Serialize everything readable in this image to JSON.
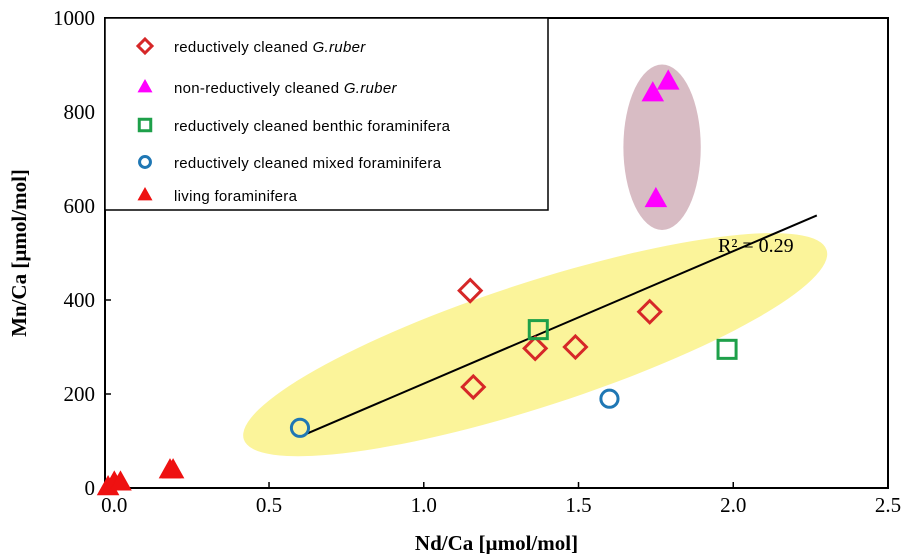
{
  "chart_data": {
    "type": "scatter",
    "xlabel": "Nd/Ca [µmol/mol]",
    "ylabel": "Mn/Ca [µmol/mol]",
    "xlim": [
      -0.03,
      2.5
    ],
    "ylim": [
      0,
      1000
    ],
    "xticks": [
      "0.0",
      "0.5",
      "1.0",
      "1.5",
      "2.0",
      "2.5"
    ],
    "xtick_values": [
      0.0,
      0.5,
      1.0,
      1.5,
      2.0,
      2.5
    ],
    "yticks": [
      "0",
      "200",
      "400",
      "600",
      "800",
      "1000"
    ],
    "ytick_values": [
      0,
      200,
      400,
      600,
      800,
      1000
    ],
    "grid": false,
    "legend_position": "top-left",
    "series": [
      {
        "name": "reductively cleaned",
        "name_italic": "G.ruber",
        "marker": "diamond-open",
        "color": "#d62728",
        "points": [
          [
            1.15,
            420
          ],
          [
            1.16,
            215
          ],
          [
            1.36,
            297
          ],
          [
            1.49,
            300
          ],
          [
            1.73,
            375
          ]
        ]
      },
      {
        "name": "non-reductively cleaned",
        "name_italic": "G.ruber",
        "marker": "triangle-filled",
        "color": "#ff00ff",
        "points": [
          [
            1.74,
            840
          ],
          [
            1.79,
            865
          ],
          [
            1.75,
            615
          ]
        ]
      },
      {
        "name": "reductively cleaned benthic foraminifera",
        "marker": "square-open",
        "color": "#1ea04a",
        "points": [
          [
            1.37,
            337
          ],
          [
            1.98,
            295
          ]
        ]
      },
      {
        "name": "reductively cleaned mixed foraminifera",
        "marker": "circle-open",
        "color": "#1f77b4",
        "points": [
          [
            0.6,
            128
          ],
          [
            1.6,
            190
          ]
        ]
      },
      {
        "name": "living foraminifera",
        "marker": "triangle-filled",
        "color": "#ee1111",
        "points": [
          [
            -0.02,
            2
          ],
          [
            0.0,
            12
          ],
          [
            0.02,
            12
          ],
          [
            0.18,
            38
          ],
          [
            0.19,
            38
          ]
        ]
      }
    ],
    "trendline": {
      "x": [
        0.62,
        2.27
      ],
      "y": [
        115,
        580
      ],
      "label": "R² = 0.29"
    },
    "highlights": [
      {
        "shape": "ellipse",
        "color": "#fbf49a",
        "cx": 1.36,
        "cy": 305,
        "rx": 0.99,
        "ry": 132,
        "rotate": -18
      },
      {
        "shape": "ellipse",
        "color": "#d8bcc4",
        "cx": 1.77,
        "cy": 725,
        "rx": 0.125,
        "ry": 176,
        "rotate": 0
      }
    ]
  }
}
